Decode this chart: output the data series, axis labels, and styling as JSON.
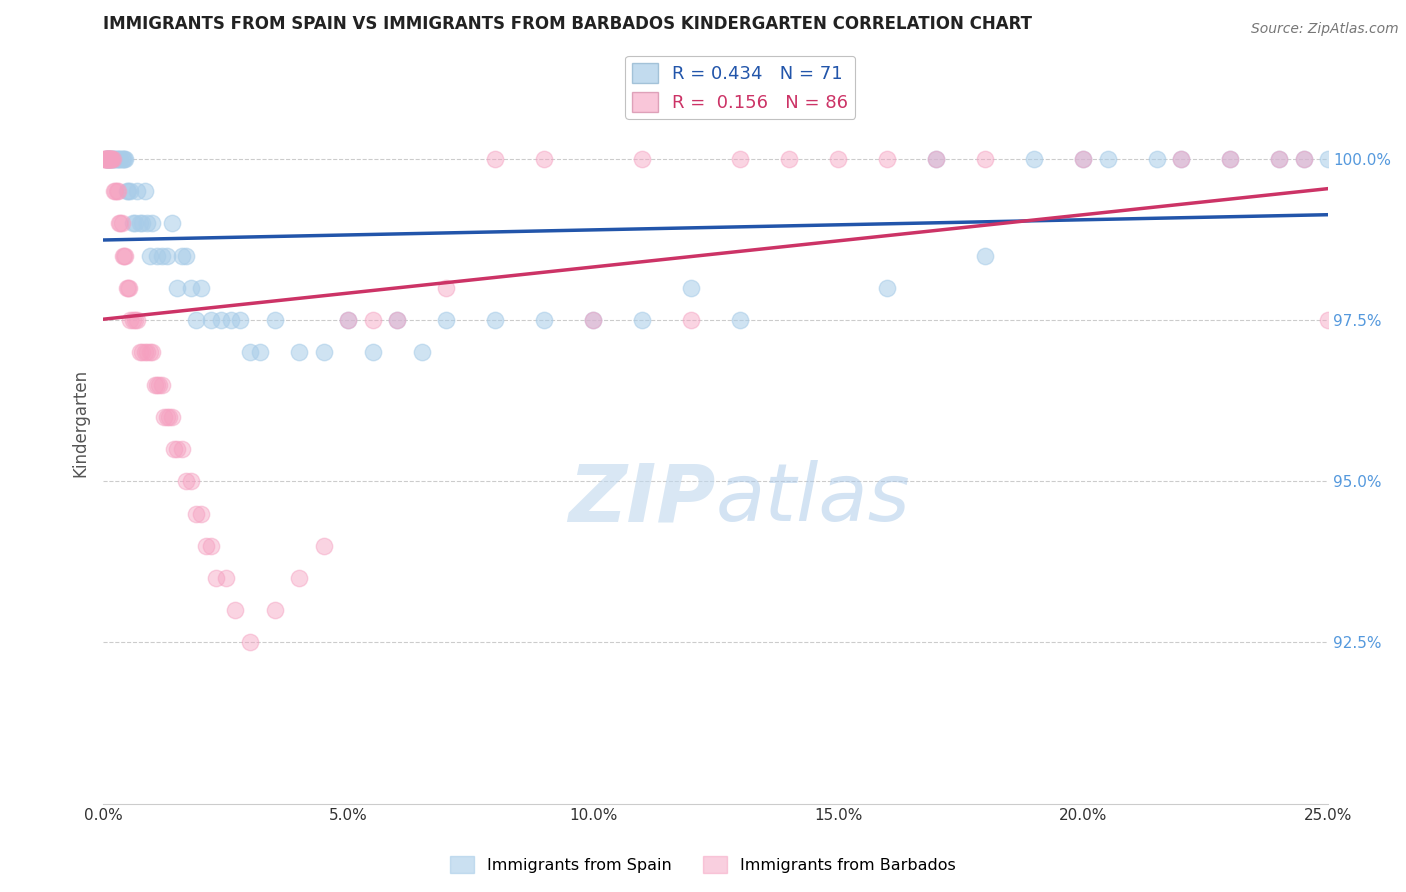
{
  "title": "IMMIGRANTS FROM SPAIN VS IMMIGRANTS FROM BARBADOS KINDERGARTEN CORRELATION CHART",
  "source_text": "Source: ZipAtlas.com",
  "ylabel": "Kindergarten",
  "xlim": [
    0.0,
    25.0
  ],
  "ylim": [
    90.0,
    101.8
  ],
  "yticks": [
    92.5,
    95.0,
    97.5,
    100.0
  ],
  "ytick_labels": [
    "92.5%",
    "95.0%",
    "97.5%",
    "100.0%"
  ],
  "xticks": [
    0.0,
    5.0,
    10.0,
    15.0,
    20.0,
    25.0
  ],
  "xtick_labels": [
    "0.0%",
    "5.0%",
    "10.0%",
    "15.0%",
    "20.0%",
    "25.0%"
  ],
  "spain_color": "#a8cce8",
  "spain_line_color": "#2255aa",
  "barbados_color": "#f5a0c0",
  "barbados_line_color": "#cc3366",
  "spain_R": 0.434,
  "spain_N": 71,
  "barbados_R": 0.156,
  "barbados_N": 86,
  "legend_labels": [
    "Immigrants from Spain",
    "Immigrants from Barbados"
  ],
  "watermark_zip": "ZIP",
  "watermark_atlas": "atlas",
  "background_color": "#ffffff",
  "ytick_color": "#5599dd",
  "xtick_color": "#333333",
  "grid_color": "#cccccc",
  "spain_x": [
    0.05,
    0.08,
    0.1,
    0.12,
    0.15,
    0.18,
    0.2,
    0.22,
    0.25,
    0.28,
    0.3,
    0.32,
    0.35,
    0.38,
    0.4,
    0.42,
    0.45,
    0.48,
    0.5,
    0.55,
    0.6,
    0.65,
    0.7,
    0.75,
    0.8,
    0.85,
    0.9,
    0.95,
    1.0,
    1.1,
    1.2,
    1.3,
    1.4,
    1.5,
    1.6,
    1.7,
    1.8,
    1.9,
    2.0,
    2.2,
    2.4,
    2.6,
    2.8,
    3.0,
    3.2,
    3.5,
    4.0,
    4.5,
    5.0,
    5.5,
    6.0,
    6.5,
    7.0,
    8.0,
    9.0,
    10.0,
    11.0,
    12.0,
    13.0,
    16.0,
    18.0,
    20.0,
    22.0,
    23.0,
    24.0,
    24.5,
    25.0,
    20.5,
    21.5,
    17.0,
    19.0
  ],
  "spain_y": [
    100.0,
    100.0,
    100.0,
    100.0,
    100.0,
    100.0,
    100.0,
    100.0,
    100.0,
    100.0,
    100.0,
    100.0,
    100.0,
    100.0,
    100.0,
    100.0,
    100.0,
    99.5,
    99.5,
    99.5,
    99.0,
    99.0,
    99.5,
    99.0,
    99.0,
    99.5,
    99.0,
    98.5,
    99.0,
    98.5,
    98.5,
    98.5,
    99.0,
    98.0,
    98.5,
    98.5,
    98.0,
    97.5,
    98.0,
    97.5,
    97.5,
    97.5,
    97.5,
    97.0,
    97.0,
    97.5,
    97.0,
    97.0,
    97.5,
    97.0,
    97.5,
    97.0,
    97.5,
    97.5,
    97.5,
    97.5,
    97.5,
    98.0,
    97.5,
    98.0,
    98.5,
    100.0,
    100.0,
    100.0,
    100.0,
    100.0,
    100.0,
    100.0,
    100.0,
    100.0,
    100.0
  ],
  "barbados_x": [
    0.02,
    0.03,
    0.04,
    0.05,
    0.06,
    0.07,
    0.08,
    0.09,
    0.1,
    0.11,
    0.12,
    0.13,
    0.14,
    0.15,
    0.16,
    0.17,
    0.18,
    0.2,
    0.22,
    0.25,
    0.28,
    0.3,
    0.32,
    0.35,
    0.38,
    0.4,
    0.42,
    0.45,
    0.48,
    0.5,
    0.52,
    0.55,
    0.6,
    0.65,
    0.7,
    0.75,
    0.8,
    0.85,
    0.9,
    0.95,
    1.0,
    1.05,
    1.1,
    1.15,
    1.2,
    1.25,
    1.3,
    1.35,
    1.4,
    1.45,
    1.5,
    1.6,
    1.7,
    1.8,
    1.9,
    2.0,
    2.1,
    2.2,
    2.3,
    2.5,
    2.7,
    3.0,
    3.5,
    4.0,
    4.5,
    5.0,
    5.5,
    6.0,
    7.0,
    8.0,
    9.0,
    10.0,
    11.0,
    12.0,
    14.0,
    15.0,
    17.0,
    18.0,
    20.0,
    22.0,
    23.0,
    24.0,
    24.5,
    25.0,
    13.0,
    16.0
  ],
  "barbados_y": [
    100.0,
    100.0,
    100.0,
    100.0,
    100.0,
    100.0,
    100.0,
    100.0,
    100.0,
    100.0,
    100.0,
    100.0,
    100.0,
    100.0,
    100.0,
    100.0,
    100.0,
    100.0,
    99.5,
    99.5,
    99.5,
    99.5,
    99.0,
    99.0,
    99.0,
    98.5,
    98.5,
    98.5,
    98.0,
    98.0,
    98.0,
    97.5,
    97.5,
    97.5,
    97.5,
    97.0,
    97.0,
    97.0,
    97.0,
    97.0,
    97.0,
    96.5,
    96.5,
    96.5,
    96.5,
    96.0,
    96.0,
    96.0,
    96.0,
    95.5,
    95.5,
    95.5,
    95.0,
    95.0,
    94.5,
    94.5,
    94.0,
    94.0,
    93.5,
    93.5,
    93.0,
    92.5,
    93.0,
    93.5,
    94.0,
    97.5,
    97.5,
    97.5,
    98.0,
    100.0,
    100.0,
    97.5,
    100.0,
    97.5,
    100.0,
    100.0,
    100.0,
    100.0,
    100.0,
    100.0,
    100.0,
    100.0,
    100.0,
    97.5,
    100.0,
    100.0
  ]
}
